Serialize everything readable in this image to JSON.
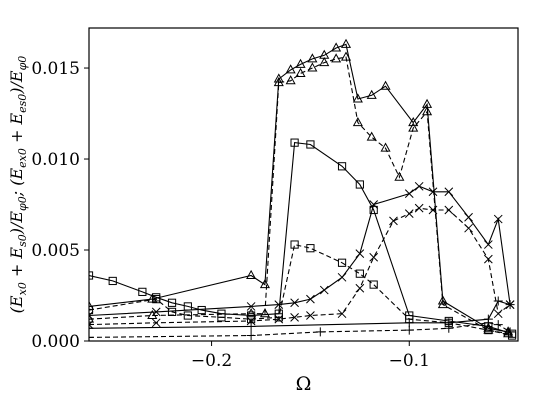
{
  "chart_data": {
    "type": "line",
    "xlabel": "Ω",
    "ylabel": "(E_{x0} + E_{s0})/E_{φ0}, (E_{ex0} + E_{es0})/E_{φ0}",
    "ylabel_parts": [
      "(E",
      "x0",
      " + E",
      "s0",
      ")/E",
      "φ0",
      "; (E",
      "ex0",
      " + E",
      "es0",
      ")/E",
      "φ0"
    ],
    "xlim": [
      -0.262,
      -0.045
    ],
    "ylim": [
      0.0,
      0.0172
    ],
    "xticks": [
      -0.2,
      -0.1
    ],
    "xtick_labels": [
      "−0.2",
      "−0.1"
    ],
    "yticks": [
      0.0,
      0.005,
      0.01,
      0.015
    ],
    "ytick_labels": [
      "0.000",
      "0.005",
      "0.010",
      "0.015"
    ],
    "grid": false,
    "legend": "none",
    "series": [
      {
        "marker": "triangle",
        "dashed": false,
        "points": [
          [
            -0.262,
            0.0019
          ],
          [
            -0.23,
            0.0023
          ],
          [
            -0.18,
            0.0036
          ],
          [
            -0.173,
            0.0031
          ],
          [
            -0.166,
            0.0144
          ],
          [
            -0.16,
            0.0149
          ],
          [
            -0.155,
            0.0152
          ],
          [
            -0.149,
            0.0155
          ],
          [
            -0.143,
            0.0157
          ],
          [
            -0.137,
            0.0161
          ],
          [
            -0.132,
            0.0163
          ],
          [
            -0.126,
            0.0133
          ],
          [
            -0.119,
            0.0135
          ],
          [
            -0.112,
            0.014
          ],
          [
            -0.098,
            0.012
          ],
          [
            -0.091,
            0.013
          ],
          [
            -0.083,
            0.0022
          ],
          [
            -0.06,
            0.0007
          ],
          [
            -0.05,
            0.0005
          ]
        ]
      },
      {
        "marker": "triangle",
        "dashed": true,
        "points": [
          [
            -0.262,
            0.0012
          ],
          [
            -0.23,
            0.0014
          ],
          [
            -0.18,
            0.0015
          ],
          [
            -0.173,
            0.0015
          ],
          [
            -0.166,
            0.0142
          ],
          [
            -0.16,
            0.0143
          ],
          [
            -0.155,
            0.0147
          ],
          [
            -0.149,
            0.015
          ],
          [
            -0.143,
            0.0153
          ],
          [
            -0.137,
            0.0155
          ],
          [
            -0.132,
            0.0156
          ],
          [
            -0.126,
            0.012
          ],
          [
            -0.119,
            0.0112
          ],
          [
            -0.112,
            0.0106
          ],
          [
            -0.105,
            0.009
          ],
          [
            -0.098,
            0.0117
          ],
          [
            -0.091,
            0.0126
          ],
          [
            -0.083,
            0.002
          ],
          [
            -0.06,
            0.0006
          ],
          [
            -0.05,
            0.0004
          ]
        ]
      },
      {
        "marker": "square",
        "dashed": false,
        "points": [
          [
            -0.262,
            0.0036
          ],
          [
            -0.25,
            0.0033
          ],
          [
            -0.235,
            0.0027
          ],
          [
            -0.228,
            0.0024
          ],
          [
            -0.22,
            0.0021
          ],
          [
            -0.212,
            0.0019
          ],
          [
            -0.205,
            0.0017
          ],
          [
            -0.195,
            0.0015
          ],
          [
            -0.18,
            0.0014
          ],
          [
            -0.166,
            0.0015
          ],
          [
            -0.158,
            0.0109
          ],
          [
            -0.15,
            0.0108
          ],
          [
            -0.134,
            0.0096
          ],
          [
            -0.125,
            0.0086
          ],
          [
            -0.118,
            0.0072
          ],
          [
            -0.1,
            0.0014
          ],
          [
            -0.08,
            0.0011
          ],
          [
            -0.06,
            0.0008
          ],
          [
            -0.048,
            0.0004
          ]
        ]
      },
      {
        "marker": "square",
        "dashed": true,
        "points": [
          [
            -0.262,
            0.0017
          ],
          [
            -0.228,
            0.0023
          ],
          [
            -0.22,
            0.0016
          ],
          [
            -0.212,
            0.0014
          ],
          [
            -0.195,
            0.0013
          ],
          [
            -0.18,
            0.0012
          ],
          [
            -0.166,
            0.0013
          ],
          [
            -0.158,
            0.0053
          ],
          [
            -0.15,
            0.0051
          ],
          [
            -0.134,
            0.0043
          ],
          [
            -0.125,
            0.0037
          ],
          [
            -0.118,
            0.0031
          ],
          [
            -0.1,
            0.0012
          ],
          [
            -0.08,
            0.001
          ],
          [
            -0.06,
            0.0006
          ],
          [
            -0.048,
            0.0003
          ]
        ]
      },
      {
        "marker": "x",
        "dashed": false,
        "points": [
          [
            -0.262,
            0.0014
          ],
          [
            -0.228,
            0.0016
          ],
          [
            -0.18,
            0.0019
          ],
          [
            -0.166,
            0.002
          ],
          [
            -0.158,
            0.0021
          ],
          [
            -0.15,
            0.0023
          ],
          [
            -0.143,
            0.0028
          ],
          [
            -0.134,
            0.0035
          ],
          [
            -0.125,
            0.0048
          ],
          [
            -0.118,
            0.0075
          ],
          [
            -0.1,
            0.0081
          ],
          [
            -0.095,
            0.0085
          ],
          [
            -0.088,
            0.0082
          ],
          [
            -0.08,
            0.0082
          ],
          [
            -0.07,
            0.0068
          ],
          [
            -0.06,
            0.0053
          ],
          [
            -0.055,
            0.0067
          ],
          [
            -0.049,
            0.002
          ]
        ]
      },
      {
        "marker": "x",
        "dashed": true,
        "points": [
          [
            -0.262,
            0.0009
          ],
          [
            -0.228,
            0.001
          ],
          [
            -0.18,
            0.0011
          ],
          [
            -0.166,
            0.0012
          ],
          [
            -0.158,
            0.0013
          ],
          [
            -0.15,
            0.0014
          ],
          [
            -0.134,
            0.0015
          ],
          [
            -0.125,
            0.0029
          ],
          [
            -0.118,
            0.0046
          ],
          [
            -0.108,
            0.0066
          ],
          [
            -0.1,
            0.007
          ],
          [
            -0.095,
            0.0073
          ],
          [
            -0.088,
            0.0072
          ],
          [
            -0.08,
            0.0072
          ],
          [
            -0.07,
            0.0062
          ],
          [
            -0.06,
            0.0045
          ],
          [
            -0.055,
            0.0015
          ],
          [
            -0.049,
            0.002
          ]
        ]
      },
      {
        "marker": "plus",
        "dashed": false,
        "points": [
          [
            -0.262,
            0.0007
          ],
          [
            -0.18,
            0.0008
          ],
          [
            -0.1,
            0.001
          ],
          [
            -0.08,
            0.001
          ],
          [
            -0.06,
            0.0012
          ],
          [
            -0.055,
            0.0022
          ],
          [
            -0.049,
            0.002
          ]
        ]
      },
      {
        "marker": "plus",
        "dashed": true,
        "points": [
          [
            -0.262,
            0.0002
          ],
          [
            -0.18,
            0.0003
          ],
          [
            -0.145,
            0.0005
          ],
          [
            -0.1,
            0.0006
          ],
          [
            -0.08,
            0.0007
          ],
          [
            -0.06,
            0.001
          ],
          [
            -0.055,
            0.0009
          ],
          [
            -0.049,
            0.0005
          ]
        ]
      }
    ]
  }
}
